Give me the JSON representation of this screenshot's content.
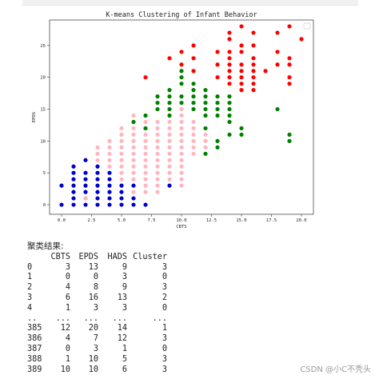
{
  "chart_data": {
    "type": "scatter",
    "title": "K-means Clustering of Infant Behavior",
    "xlabel": "CBTS",
    "ylabel": "EPDS",
    "xlim": [
      -1,
      21
    ],
    "ylim": [
      -1.5,
      29
    ],
    "xticks": [
      0.0,
      2.5,
      5.0,
      7.5,
      10.0,
      12.5,
      15.0,
      17.5,
      20.0
    ],
    "xtick_labels": [
      "0.0",
      "2.5",
      "5.0",
      "7.5",
      "10.0",
      "12.5",
      "15.0",
      "17.5",
      "20.0"
    ],
    "yticks": [
      0,
      5,
      10,
      15,
      20,
      25
    ],
    "ytick_labels": [
      "0",
      "5",
      "10",
      "15",
      "20",
      "25"
    ],
    "grid": false,
    "legend": "top-right (empty)",
    "colors": {
      "cluster_0": "#0000cc",
      "cluster_1": "#ff0000",
      "cluster_2": "#008000",
      "cluster_3": "#ffb6c1"
    },
    "series": [
      {
        "color": "#0000cc",
        "points": [
          [
            0,
            0
          ],
          [
            0,
            3
          ],
          [
            1,
            0
          ],
          [
            1,
            1
          ],
          [
            1,
            2
          ],
          [
            1,
            3
          ],
          [
            1,
            4
          ],
          [
            1,
            5
          ],
          [
            1,
            6
          ],
          [
            2,
            0
          ],
          [
            2,
            1
          ],
          [
            2,
            2
          ],
          [
            2,
            3
          ],
          [
            2,
            4
          ],
          [
            2,
            5
          ],
          [
            2,
            7
          ],
          [
            3,
            0
          ],
          [
            3,
            1
          ],
          [
            3,
            2
          ],
          [
            3,
            3
          ],
          [
            3,
            4
          ],
          [
            3,
            5
          ],
          [
            3,
            6
          ],
          [
            4,
            0
          ],
          [
            4,
            1
          ],
          [
            4,
            2
          ],
          [
            4,
            3
          ],
          [
            4,
            4
          ],
          [
            4,
            5
          ],
          [
            5,
            0
          ],
          [
            5,
            1
          ],
          [
            5,
            2
          ],
          [
            5,
            3
          ],
          [
            6,
            0
          ],
          [
            6,
            1
          ],
          [
            6,
            3
          ],
          [
            7,
            0
          ],
          [
            9,
            3
          ]
        ]
      },
      {
        "color": "#ffb6c1",
        "points": [
          [
            2,
            1
          ],
          [
            3,
            7
          ],
          [
            3,
            8
          ],
          [
            3,
            9
          ],
          [
            4,
            6
          ],
          [
            4,
            7
          ],
          [
            4,
            8
          ],
          [
            4,
            9
          ],
          [
            4,
            10
          ],
          [
            5,
            4
          ],
          [
            5,
            5
          ],
          [
            5,
            6
          ],
          [
            5,
            7
          ],
          [
            5,
            8
          ],
          [
            5,
            9
          ],
          [
            5,
            10
          ],
          [
            5,
            11
          ],
          [
            5,
            12
          ],
          [
            6,
            2
          ],
          [
            6,
            4
          ],
          [
            6,
            5
          ],
          [
            6,
            6
          ],
          [
            6,
            7
          ],
          [
            6,
            8
          ],
          [
            6,
            9
          ],
          [
            6,
            10
          ],
          [
            6,
            11
          ],
          [
            6,
            12
          ],
          [
            6,
            13
          ],
          [
            6,
            14
          ],
          [
            7,
            2
          ],
          [
            7,
            3
          ],
          [
            7,
            4
          ],
          [
            7,
            5
          ],
          [
            7,
            6
          ],
          [
            7,
            7
          ],
          [
            7,
            8
          ],
          [
            7,
            9
          ],
          [
            7,
            10
          ],
          [
            7,
            11
          ],
          [
            7,
            12
          ],
          [
            7,
            13
          ],
          [
            8,
            2
          ],
          [
            8,
            3
          ],
          [
            8,
            4
          ],
          [
            8,
            5
          ],
          [
            8,
            6
          ],
          [
            8,
            7
          ],
          [
            8,
            8
          ],
          [
            8,
            9
          ],
          [
            8,
            10
          ],
          [
            8,
            11
          ],
          [
            8,
            12
          ],
          [
            8,
            13
          ],
          [
            9,
            4
          ],
          [
            9,
            5
          ],
          [
            9,
            6
          ],
          [
            9,
            7
          ],
          [
            9,
            8
          ],
          [
            9,
            9
          ],
          [
            9,
            10
          ],
          [
            9,
            11
          ],
          [
            9,
            12
          ],
          [
            9,
            13
          ],
          [
            9,
            14
          ],
          [
            9,
            15
          ],
          [
            10,
            3
          ],
          [
            10,
            4
          ],
          [
            10,
            5
          ],
          [
            10,
            6
          ],
          [
            10,
            7
          ],
          [
            10,
            8
          ],
          [
            10,
            9
          ],
          [
            10,
            10
          ],
          [
            10,
            11
          ],
          [
            10,
            12
          ],
          [
            10,
            13
          ],
          [
            10,
            14
          ],
          [
            10,
            15
          ],
          [
            11,
            8
          ],
          [
            11,
            9
          ],
          [
            11,
            10
          ],
          [
            11,
            11
          ],
          [
            11,
            12
          ],
          [
            11,
            13
          ],
          [
            12,
            9
          ],
          [
            12,
            10
          ],
          [
            12,
            11
          ]
        ]
      },
      {
        "color": "#008000",
        "points": [
          [
            6,
            13
          ],
          [
            7,
            12
          ],
          [
            7,
            14
          ],
          [
            8,
            15
          ],
          [
            8,
            16
          ],
          [
            8,
            17
          ],
          [
            9,
            14
          ],
          [
            9,
            15
          ],
          [
            9,
            16
          ],
          [
            9,
            17
          ],
          [
            9,
            18
          ],
          [
            10,
            16
          ],
          [
            10,
            17
          ],
          [
            10,
            19
          ],
          [
            10,
            20
          ],
          [
            10,
            21
          ],
          [
            11,
            15
          ],
          [
            11,
            16
          ],
          [
            11,
            17
          ],
          [
            11,
            18
          ],
          [
            11,
            19
          ],
          [
            12,
            8
          ],
          [
            12,
            12
          ],
          [
            12,
            14
          ],
          [
            12,
            15
          ],
          [
            12,
            16
          ],
          [
            12,
            17
          ],
          [
            12,
            18
          ],
          [
            13,
            9
          ],
          [
            13,
            10
          ],
          [
            13,
            14
          ],
          [
            13,
            15
          ],
          [
            13,
            16
          ],
          [
            13,
            17
          ],
          [
            14,
            11
          ],
          [
            14,
            13
          ],
          [
            14,
            14
          ],
          [
            14,
            15
          ],
          [
            14,
            16
          ],
          [
            14,
            17
          ],
          [
            15,
            11
          ],
          [
            15,
            12
          ],
          [
            18,
            15
          ],
          [
            19,
            10
          ],
          [
            19,
            11
          ]
        ]
      },
      {
        "color": "#ff0000",
        "points": [
          [
            7,
            20
          ],
          [
            9,
            23
          ],
          [
            10,
            22
          ],
          [
            10,
            24
          ],
          [
            11,
            23
          ],
          [
            11,
            25
          ],
          [
            11,
            21
          ],
          [
            13,
            20
          ],
          [
            13,
            22
          ],
          [
            13,
            24
          ],
          [
            14,
            19
          ],
          [
            14,
            20
          ],
          [
            14,
            21
          ],
          [
            14,
            22
          ],
          [
            14,
            23
          ],
          [
            14,
            24
          ],
          [
            14,
            26
          ],
          [
            14,
            27
          ],
          [
            15,
            18
          ],
          [
            15,
            19
          ],
          [
            15,
            20
          ],
          [
            15,
            21
          ],
          [
            15,
            22
          ],
          [
            15,
            24
          ],
          [
            15,
            25
          ],
          [
            15,
            28
          ],
          [
            16,
            18
          ],
          [
            16,
            19
          ],
          [
            16,
            20
          ],
          [
            16,
            21
          ],
          [
            16,
            22
          ],
          [
            16,
            23
          ],
          [
            16,
            25
          ],
          [
            16,
            27
          ],
          [
            17,
            21
          ],
          [
            18,
            22
          ],
          [
            18,
            24
          ],
          [
            18,
            27
          ],
          [
            19,
            19
          ],
          [
            19,
            20
          ],
          [
            19,
            22
          ],
          [
            19,
            23
          ],
          [
            19,
            28
          ],
          [
            20,
            26
          ]
        ]
      }
    ]
  },
  "output": {
    "heading": "聚类结果:",
    "columns": [
      "",
      "CBTS",
      "EPDS",
      "HADS",
      "Cluster"
    ],
    "rows": [
      [
        "0",
        "3",
        "13",
        "9",
        "3"
      ],
      [
        "1",
        "0",
        "0",
        "3",
        "0"
      ],
      [
        "2",
        "4",
        "8",
        "9",
        "3"
      ],
      [
        "3",
        "6",
        "16",
        "13",
        "2"
      ],
      [
        "4",
        "1",
        "3",
        "3",
        "0"
      ],
      [
        "..",
        "...",
        "...",
        "...",
        "..."
      ],
      [
        "385",
        "12",
        "20",
        "14",
        "1"
      ],
      [
        "386",
        "4",
        "7",
        "12",
        "3"
      ],
      [
        "387",
        "0",
        "3",
        "1",
        "0"
      ],
      [
        "388",
        "1",
        "10",
        "5",
        "3"
      ],
      [
        "389",
        "10",
        "10",
        "6",
        "3"
      ]
    ]
  },
  "watermark": "CSDN @小C不秃头"
}
